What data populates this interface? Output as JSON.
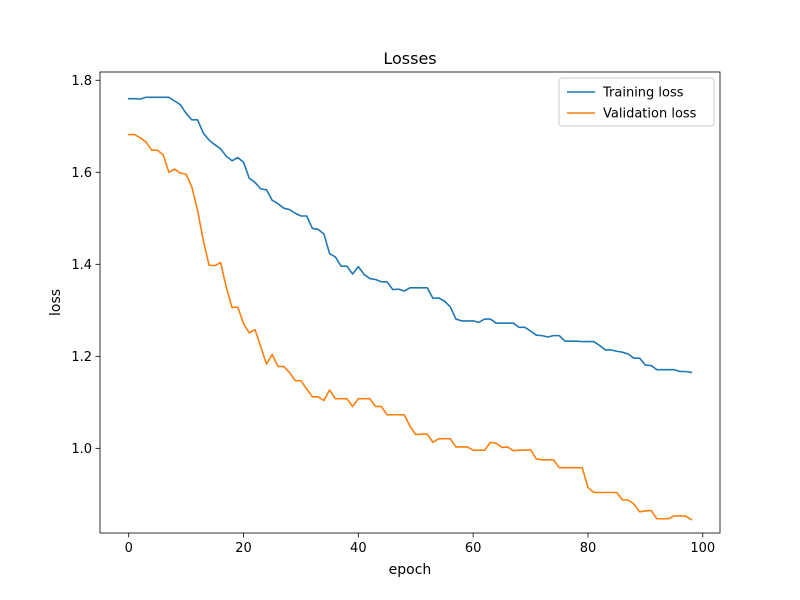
{
  "chart_data": {
    "type": "line",
    "title": "Losses",
    "xlabel": "epoch",
    "ylabel": "loss",
    "xlim": [
      -5,
      103
    ],
    "ylim": [
      0.816,
      1.818
    ],
    "xticks": [
      0,
      20,
      40,
      60,
      80,
      100
    ],
    "yticks": [
      1.0,
      1.2,
      1.4,
      1.6,
      1.8
    ],
    "xtick_labels": [
      "0",
      "20",
      "40",
      "60",
      "80",
      "100"
    ],
    "ytick_labels": [
      "1.0",
      "1.2",
      "1.4",
      "1.6",
      "1.8"
    ],
    "grid": false,
    "legend_position": "upper right",
    "x": [
      0,
      1,
      2,
      3,
      4,
      5,
      6,
      7,
      8,
      9,
      10,
      11,
      12,
      13,
      14,
      15,
      16,
      17,
      18,
      19,
      20,
      21,
      22,
      23,
      24,
      25,
      26,
      27,
      28,
      29,
      30,
      31,
      32,
      33,
      34,
      35,
      36,
      37,
      38,
      39,
      40,
      41,
      42,
      43,
      44,
      45,
      46,
      47,
      48,
      49,
      50,
      51,
      52,
      53,
      54,
      55,
      56,
      57,
      58,
      59,
      60,
      61,
      62,
      63,
      64,
      65,
      66,
      67,
      68,
      69,
      70,
      71,
      72,
      73,
      74,
      75,
      76,
      77,
      78,
      79,
      80,
      81,
      82,
      83,
      84,
      85,
      86,
      87,
      88,
      89,
      90,
      91,
      92,
      93,
      94,
      95,
      96,
      97,
      98
    ],
    "series": [
      {
        "name": "Training loss",
        "color": "#1f77b4",
        "values": [
          1.76,
          1.76,
          1.759,
          1.763,
          1.763,
          1.763,
          1.763,
          1.763,
          1.755,
          1.747,
          1.728,
          1.714,
          1.714,
          1.685,
          1.67,
          1.66,
          1.651,
          1.635,
          1.625,
          1.632,
          1.622,
          1.587,
          1.578,
          1.564,
          1.562,
          1.539,
          1.532,
          1.522,
          1.519,
          1.511,
          1.505,
          1.505,
          1.478,
          1.476,
          1.466,
          1.423,
          1.416,
          1.396,
          1.396,
          1.379,
          1.395,
          1.378,
          1.369,
          1.367,
          1.362,
          1.362,
          1.345,
          1.346,
          1.342,
          1.349,
          1.349,
          1.349,
          1.349,
          1.326,
          1.327,
          1.32,
          1.308,
          1.281,
          1.277,
          1.277,
          1.277,
          1.274,
          1.281,
          1.281,
          1.272,
          1.272,
          1.272,
          1.272,
          1.263,
          1.263,
          1.255,
          1.246,
          1.245,
          1.242,
          1.245,
          1.245,
          1.233,
          1.233,
          1.233,
          1.232,
          1.232,
          1.232,
          1.224,
          1.214,
          1.214,
          1.211,
          1.209,
          1.205,
          1.196,
          1.196,
          1.181,
          1.18,
          1.171,
          1.171,
          1.171,
          1.171,
          1.167,
          1.167,
          1.165
        ]
      },
      {
        "name": "Validation loss",
        "color": "#ff7f0e",
        "values": [
          1.682,
          1.682,
          1.675,
          1.666,
          1.648,
          1.648,
          1.638,
          1.6,
          1.607,
          1.598,
          1.596,
          1.568,
          1.517,
          1.452,
          1.398,
          1.397,
          1.404,
          1.35,
          1.306,
          1.307,
          1.271,
          1.251,
          1.258,
          1.221,
          1.183,
          1.204,
          1.178,
          1.178,
          1.165,
          1.147,
          1.147,
          1.129,
          1.112,
          1.112,
          1.104,
          1.127,
          1.108,
          1.108,
          1.108,
          1.091,
          1.108,
          1.108,
          1.108,
          1.091,
          1.091,
          1.073,
          1.073,
          1.073,
          1.073,
          1.048,
          1.03,
          1.031,
          1.031,
          1.013,
          1.021,
          1.021,
          1.021,
          1.003,
          1.003,
          1.003,
          0.996,
          0.996,
          0.996,
          1.013,
          1.011,
          1.002,
          1.003,
          0.995,
          0.996,
          0.996,
          0.997,
          0.977,
          0.975,
          0.975,
          0.975,
          0.958,
          0.958,
          0.958,
          0.958,
          0.958,
          0.915,
          0.904,
          0.904,
          0.904,
          0.904,
          0.904,
          0.888,
          0.888,
          0.879,
          0.862,
          0.864,
          0.865,
          0.847,
          0.847,
          0.847,
          0.853,
          0.853,
          0.853,
          0.845
        ]
      }
    ]
  }
}
